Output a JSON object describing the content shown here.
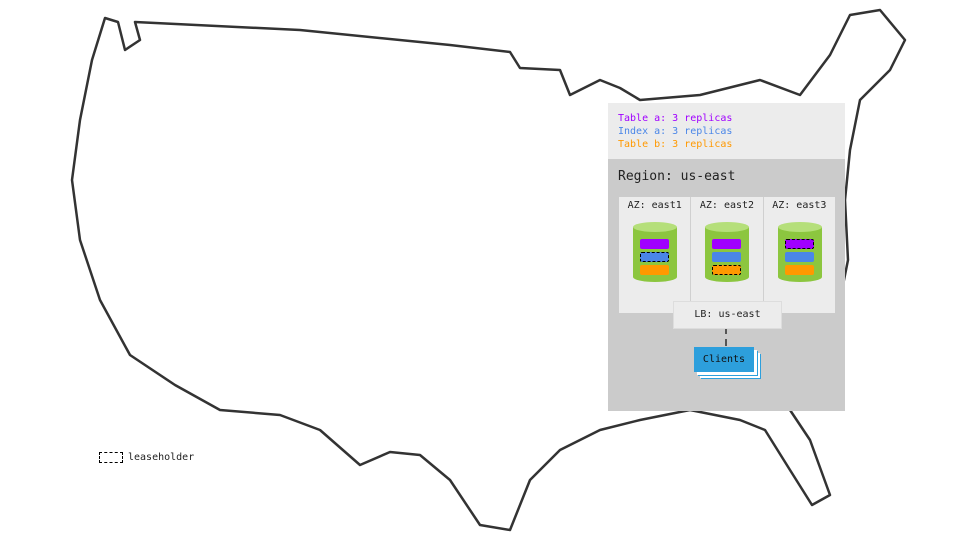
{
  "legend": [
    {
      "label": "Table a: 3 replicas",
      "color": "#a000ff"
    },
    {
      "label": "Index a: 3 replicas",
      "color": "#4a86e8"
    },
    {
      "label": "Table b: 3 replicas",
      "color": "#ff9900"
    }
  ],
  "region": {
    "title": "Region: us-east",
    "azs": [
      {
        "label": "AZ: east1",
        "leaseholder": "index-a"
      },
      {
        "label": "AZ: east2",
        "leaseholder": "table-b"
      },
      {
        "label": "AZ: east3",
        "leaseholder": "table-a"
      }
    ],
    "lb": "LB: us-east",
    "clients": "Clients"
  },
  "leaseholder_key": "leaseholder",
  "colors": {
    "cylinder": "#8cc63f",
    "cylinder_top": "#b5df7a",
    "region_bg": "#cbcbcb",
    "clients": "#2d9fdc"
  }
}
